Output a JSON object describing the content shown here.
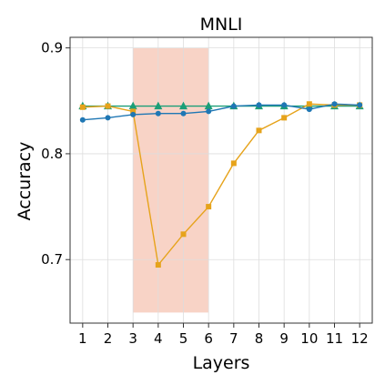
{
  "chart_data": {
    "type": "line",
    "title": "MNLI",
    "xlabel": "Layers",
    "ylabel": "Accuracy",
    "x": [
      1,
      2,
      3,
      4,
      5,
      6,
      7,
      8,
      9,
      10,
      11,
      12
    ],
    "xlim": [
      0.5,
      12.5
    ],
    "ylim": [
      0.64,
      0.91
    ],
    "yticks": [
      0.7,
      0.8,
      0.9
    ],
    "ytick_labels": [
      "0.7",
      "0.8",
      "0.9"
    ],
    "xtick_labels": [
      "1",
      "2",
      "3",
      "4",
      "5",
      "6",
      "7",
      "8",
      "9",
      "10",
      "11",
      "12"
    ],
    "grid": true,
    "highlight": {
      "x_from": 3,
      "x_to": 6,
      "y_from": 0.65,
      "y_to": 0.9,
      "color": "#f4b6a0"
    },
    "series": [
      {
        "values": [
          0.845,
          0.845,
          0.845,
          0.845,
          0.845,
          0.845,
          0.845,
          0.845,
          0.845,
          0.845,
          0.845,
          0.845
        ],
        "color": "#1b9e77",
        "marker": "triangle"
      },
      {
        "values": [
          0.844,
          0.845,
          0.84,
          0.695,
          0.724,
          0.75,
          0.791,
          0.822,
          0.834,
          0.847,
          0.846,
          0.846
        ],
        "color": "#e6a31b",
        "marker": "square"
      },
      {
        "values": [
          0.832,
          0.834,
          0.837,
          0.838,
          0.838,
          0.84,
          0.845,
          0.846,
          0.846,
          0.842,
          0.847,
          0.846
        ],
        "color": "#1f77b4",
        "marker": "circle"
      }
    ]
  }
}
